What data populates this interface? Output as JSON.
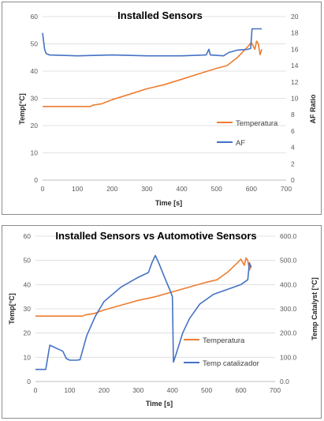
{
  "colors": {
    "orange": "#ED7D31",
    "blue": "#4472C4",
    "grid": "#d9d9d9",
    "axis": "#bfbfbf"
  },
  "chart_data": [
    {
      "type": "line",
      "title": "Installed Sensors",
      "xlabel": "Time [s]",
      "ylabel": "Temp[°C]",
      "y2label": "AF Ratio",
      "xlim": [
        0,
        700
      ],
      "ylim": [
        0,
        60
      ],
      "y2lim": [
        0,
        20
      ],
      "xticks": [
        "0",
        "100",
        "200",
        "300",
        "400",
        "500",
        "600",
        "700"
      ],
      "yticks": [
        "0",
        "10",
        "20",
        "30",
        "40",
        "50",
        "60"
      ],
      "y2ticks": [
        "0",
        "2",
        "4",
        "6",
        "8",
        "10",
        "12",
        "14",
        "16",
        "18",
        "20"
      ],
      "legend_position": "right",
      "series": [
        {
          "name": "Temperatura",
          "axis": "left",
          "color": "#ED7D31",
          "points": [
            [
              0,
              27
            ],
            [
              100,
              27
            ],
            [
              138,
              27
            ],
            [
              145,
              27.5
            ],
            [
              170,
              28
            ],
            [
              200,
              29.5
            ],
            [
              250,
              31.5
            ],
            [
              300,
              33.5
            ],
            [
              350,
              35
            ],
            [
              400,
              37
            ],
            [
              450,
              39
            ],
            [
              500,
              41
            ],
            [
              530,
              42
            ],
            [
              545,
              43.5
            ],
            [
              560,
              45
            ],
            [
              575,
              47
            ],
            [
              590,
              49
            ],
            [
              600,
              50.5
            ],
            [
              610,
              48
            ],
            [
              615,
              51
            ],
            [
              620,
              50
            ],
            [
              625,
              46
            ],
            [
              630,
              48
            ]
          ]
        },
        {
          "name": "AF",
          "axis": "right",
          "color": "#4472C4",
          "points": [
            [
              0,
              18
            ],
            [
              3,
              17
            ],
            [
              6,
              16
            ],
            [
              10,
              15.5
            ],
            [
              20,
              15.3
            ],
            [
              100,
              15.2
            ],
            [
              200,
              15.3
            ],
            [
              300,
              15.2
            ],
            [
              400,
              15.2
            ],
            [
              470,
              15.3
            ],
            [
              478,
              16
            ],
            [
              482,
              15.3
            ],
            [
              520,
              15.2
            ],
            [
              535,
              15.6
            ],
            [
              560,
              15.9
            ],
            [
              590,
              16
            ],
            [
              598,
              16.1
            ],
            [
              602,
              18.5
            ],
            [
              630,
              18.5
            ]
          ]
        }
      ]
    },
    {
      "type": "line",
      "title": "Installed Sensors vs  Automotive Sensors",
      "xlabel": "Time [s]",
      "ylabel": "Temp[°C]",
      "y2label": "Temp Catalyst [°C]",
      "xlim": [
        0,
        700
      ],
      "ylim": [
        0,
        60
      ],
      "y2lim": [
        0,
        600
      ],
      "xticks": [
        "0",
        "100",
        "200",
        "300",
        "400",
        "500",
        "600",
        "700"
      ],
      "yticks": [
        "0",
        "10",
        "20",
        "30",
        "40",
        "50",
        "60"
      ],
      "y2ticks": [
        "0.0",
        "100.0",
        "200.0",
        "300.0",
        "400.0",
        "500.0",
        "600.0"
      ],
      "legend_position": "right",
      "series": [
        {
          "name": "Temperatura",
          "axis": "left",
          "color": "#ED7D31",
          "points": [
            [
              0,
              27
            ],
            [
              100,
              27
            ],
            [
              138,
              27
            ],
            [
              145,
              27.5
            ],
            [
              170,
              28
            ],
            [
              200,
              29.5
            ],
            [
              250,
              31.5
            ],
            [
              300,
              33.5
            ],
            [
              350,
              35
            ],
            [
              400,
              37
            ],
            [
              450,
              39
            ],
            [
              500,
              41
            ],
            [
              530,
              42
            ],
            [
              545,
              43.5
            ],
            [
              560,
              45
            ],
            [
              575,
              47
            ],
            [
              590,
              49
            ],
            [
              600,
              50.5
            ],
            [
              610,
              48
            ],
            [
              615,
              51
            ],
            [
              620,
              50
            ],
            [
              625,
              46
            ],
            [
              630,
              48
            ]
          ]
        },
        {
          "name": "Temp catalizador",
          "axis": "right",
          "color": "#4472C4",
          "points": [
            [
              0,
              50
            ],
            [
              30,
              50
            ],
            [
              42,
              150
            ],
            [
              80,
              125
            ],
            [
              90,
              95
            ],
            [
              100,
              88
            ],
            [
              120,
              88
            ],
            [
              130,
              90
            ],
            [
              150,
              190
            ],
            [
              175,
              270
            ],
            [
              200,
              330
            ],
            [
              250,
              390
            ],
            [
              300,
              430
            ],
            [
              330,
              450
            ],
            [
              340,
              490
            ],
            [
              350,
              520
            ],
            [
              360,
              490
            ],
            [
              380,
              420
            ],
            [
              395,
              370
            ],
            [
              400,
              350
            ],
            [
              403,
              80
            ],
            [
              410,
              110
            ],
            [
              430,
              200
            ],
            [
              450,
              260
            ],
            [
              480,
              320
            ],
            [
              520,
              360
            ],
            [
              560,
              380
            ],
            [
              600,
              400
            ],
            [
              620,
              420
            ],
            [
              625,
              490
            ],
            [
              630,
              470
            ]
          ]
        }
      ]
    }
  ]
}
